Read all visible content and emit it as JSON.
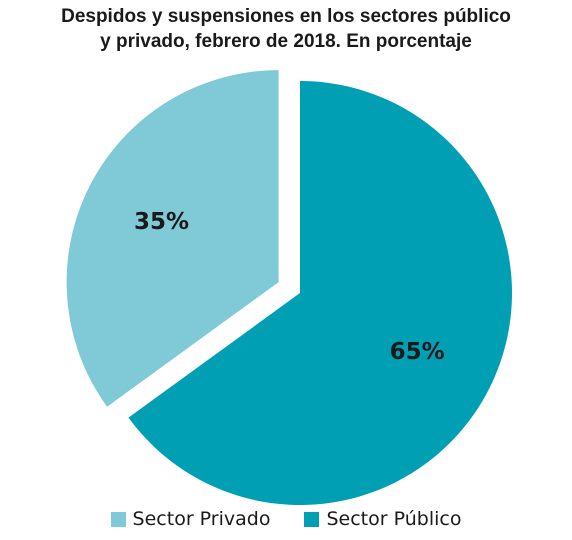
{
  "chart_data": {
    "type": "pie",
    "title": "Despidos y suspensiones en los sectores público y privado, febrero de 2018. En porcentaje",
    "title_lines": [
      "Despidos y suspensiones en los sectores público",
      "y privado, febrero de 2018. En porcentaje"
    ],
    "slices": [
      {
        "name": "Sector Privado",
        "value": 35,
        "label": "35%",
        "color": "#7fcad6"
      },
      {
        "name": "Sector Público",
        "value": 65,
        "label": "65%",
        "color": "#009fb4"
      }
    ],
    "exploded_slice": "Sector Privado",
    "legend_position": "bottom"
  }
}
